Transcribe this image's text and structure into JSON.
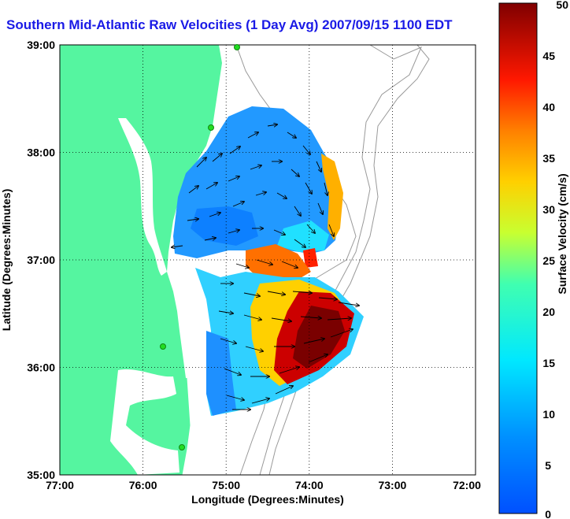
{
  "title": "Southern Mid-Atlantic Raw Velocities (1 Day Avg) 2007/09/15 1100 EDT",
  "xlabel": "Longitude (Degrees:Minutes)",
  "ylabel": "Latitude (Degrees:Minutes)",
  "colorbar_label": "Surface Velocity (cm/s)",
  "x_ticks": [
    "77:00",
    "76:00",
    "75:00",
    "74:00",
    "73:00",
    "72:00"
  ],
  "y_ticks": [
    "39:00",
    "38:00",
    "37:00",
    "36:00",
    "35:00"
  ],
  "colorbar_ticks": [
    "50",
    "45",
    "40",
    "35",
    "30",
    "25",
    "20",
    "15",
    "10",
    "5",
    "0"
  ],
  "colors": {
    "land": "#55f5a0",
    "ocean": "#ffffff",
    "title": "#1a1ae6",
    "stations": "#22dd22"
  },
  "map": {
    "lon_range": [
      -77,
      -72
    ],
    "lat_range": [
      35,
      39
    ],
    "velocity_range_cm_s": [
      0,
      50
    ],
    "grid": true,
    "colormap": "jet"
  }
}
